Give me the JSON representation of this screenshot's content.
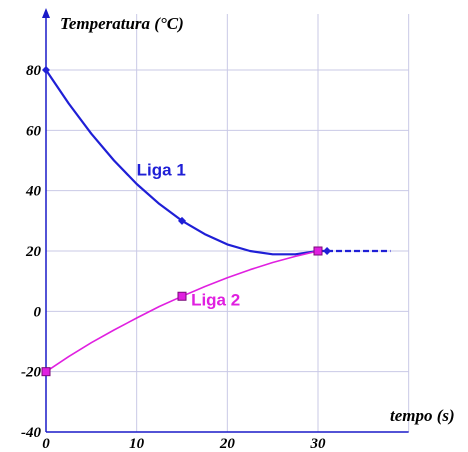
{
  "chart_data": {
    "type": "line",
    "ylabel": "Temperatura (°C)",
    "xlabel": "tempo (s)",
    "xlim": [
      0,
      40
    ],
    "ylim": [
      -40,
      90
    ],
    "x_ticks": [
      0,
      10,
      20,
      30
    ],
    "y_ticks": [
      -40,
      -20,
      0,
      20,
      40,
      60,
      80
    ],
    "grid": true,
    "series": [
      {
        "name": "Liga 1",
        "color": "#1f1fd6",
        "curve_x": [
          0,
          2.5,
          5,
          7.5,
          10,
          12.5,
          15,
          17.5,
          20,
          22.5,
          25,
          27.5,
          30
        ],
        "curve_y": [
          80,
          68.9,
          58.9,
          50,
          42.2,
          35.6,
          30,
          25.6,
          22.2,
          20,
          18.9,
          18.9,
          20
        ],
        "tail_x": [
          30,
          38
        ],
        "tail_y": [
          20,
          20
        ],
        "markers_x": [
          0,
          15,
          31
        ],
        "markers_y": [
          80,
          30,
          20
        ],
        "label_position": [
          10,
          45
        ]
      },
      {
        "name": "Liga 2",
        "color": "#e020e0",
        "curve_x": [
          0,
          2.5,
          5,
          7.5,
          10,
          12.5,
          15,
          17.5,
          20,
          22.5,
          25,
          27.5,
          30
        ],
        "curve_y": [
          -20,
          -15,
          -10.4,
          -6.2,
          -2.2,
          1.6,
          5,
          8.2,
          11.1,
          13.8,
          16.2,
          18.2,
          20
        ],
        "markers_x": [
          0,
          15,
          30
        ],
        "markers_y": [
          -20,
          5,
          20
        ],
        "label_position": [
          16,
          2
        ]
      }
    ]
  }
}
